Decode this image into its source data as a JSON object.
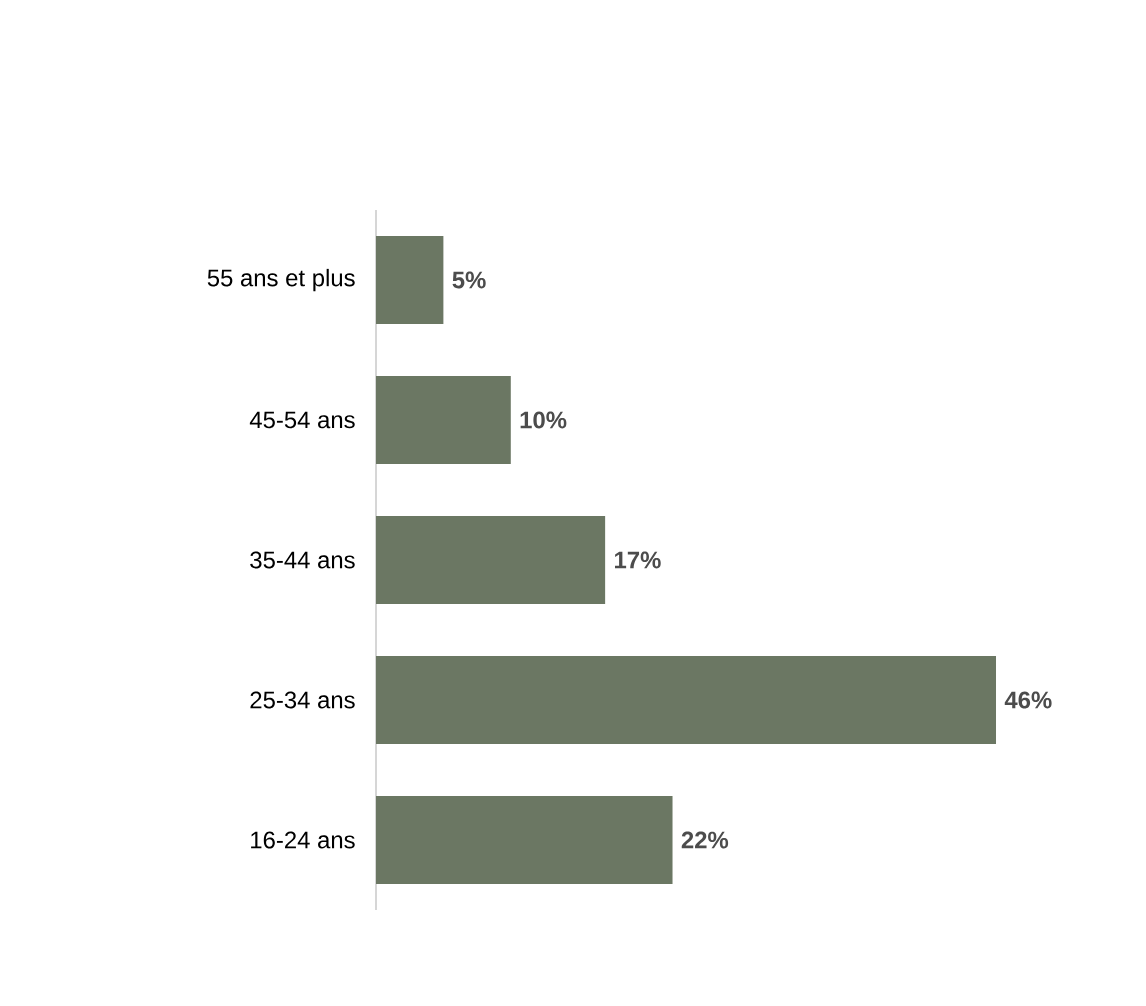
{
  "chart_data": {
    "type": "bar",
    "orientation": "horizontal",
    "categories": [
      "55 ans et plus",
      "45-54 ans",
      "35-44 ans",
      "25-34 ans",
      "16-24 ans"
    ],
    "values": [
      5,
      10,
      17,
      46,
      22
    ],
    "value_labels": [
      "5%",
      "10%",
      "17%",
      "46%",
      "22%"
    ],
    "color": "#6b7763"
  }
}
